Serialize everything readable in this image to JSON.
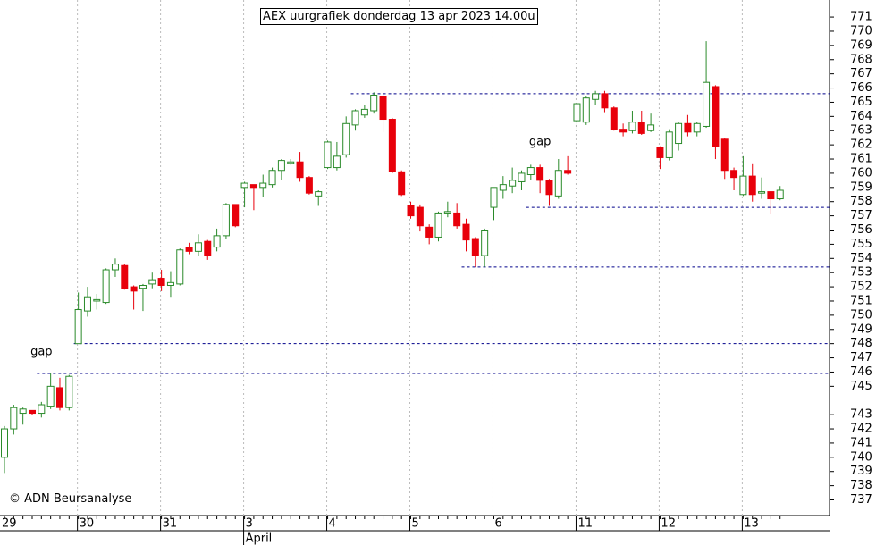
{
  "chart_data": {
    "type": "candlestick",
    "title": "AEX uurgrafiek donderdag 13 apr 2023 14.00u",
    "credit": "© ADN Beursanalyse",
    "categories": [
      "29",
      null,
      null,
      null,
      null,
      null,
      null,
      null,
      "30",
      null,
      null,
      null,
      null,
      null,
      null,
      null,
      null,
      "31",
      null,
      null,
      null,
      null,
      null,
      null,
      null,
      null,
      "3",
      null,
      null,
      null,
      null,
      null,
      null,
      null,
      null,
      "4",
      null,
      null,
      null,
      null,
      null,
      null,
      null,
      null,
      "5",
      null,
      null,
      null,
      null,
      null,
      null,
      null,
      null,
      "6",
      null,
      null,
      null,
      null,
      null,
      null,
      null,
      null,
      "11",
      null,
      null,
      null,
      null,
      null,
      null,
      null,
      null,
      "12",
      null,
      null,
      null,
      null,
      null,
      null,
      null,
      null,
      "13",
      null,
      null,
      null,
      null
    ],
    "month_labels": [
      {
        "label": "April",
        "index": 26
      }
    ],
    "open": [
      740.0,
      742.0,
      743.1,
      743.3,
      743.1,
      743.6,
      744.9,
      743.5,
      748.0,
      750.3,
      751.0,
      750.9,
      753.2,
      753.5,
      752.0,
      751.9,
      752.2,
      752.6,
      752.1,
      752.2,
      754.8,
      754.5,
      755.2,
      754.8,
      755.6,
      757.8,
      759.0,
      759.2,
      759.0,
      759.2,
      760.2,
      760.7,
      760.8,
      759.7,
      758.4,
      760.4,
      760.4,
      761.3,
      763.4,
      764.1,
      764.4,
      765.4,
      763.8,
      760.1,
      757.7,
      757.6,
      756.2,
      755.5,
      757.2,
      757.2,
      756.4,
      755.4,
      754.2,
      757.6,
      758.8,
      759.1,
      759.4,
      759.9,
      760.4,
      759.5,
      758.4,
      760.2,
      763.7,
      763.6,
      765.2,
      765.6,
      764.6,
      763.1,
      763.0,
      763.6,
      763.0,
      761.8,
      761.1,
      762.1,
      763.5,
      762.9,
      763.3,
      766.1,
      762.4,
      760.2,
      758.5,
      759.8,
      758.6,
      758.7,
      758.2
    ],
    "high": [
      742.2,
      743.7,
      743.5,
      743.3,
      743.9,
      745.9,
      745.6,
      745.8,
      751.6,
      752.0,
      751.5,
      753.3,
      754.0,
      753.6,
      752.1,
      752.2,
      753.0,
      753.2,
      753.1,
      754.7,
      755.1,
      755.7,
      755.3,
      756.1,
      757.9,
      757.8,
      759.4,
      759.2,
      759.9,
      760.4,
      761.0,
      761.0,
      761.5,
      759.8,
      758.8,
      762.3,
      762.2,
      764.0,
      764.5,
      764.8,
      765.7,
      765.6,
      763.9,
      760.2,
      758.0,
      757.8,
      756.4,
      757.3,
      758.0,
      757.9,
      756.8,
      755.5,
      756.1,
      759.0,
      759.8,
      760.4,
      760.2,
      760.6,
      760.6,
      759.6,
      761.0,
      761.2,
      765.0,
      765.4,
      765.8,
      765.8,
      764.7,
      763.5,
      764.4,
      764.4,
      764.2,
      761.9,
      763.1,
      763.6,
      764.1,
      763.6,
      769.3,
      766.2,
      762.5,
      760.4,
      761.2,
      760.7,
      759.7,
      758.7,
      759.1
    ],
    "low": [
      738.9,
      741.6,
      742.3,
      743.0,
      742.8,
      743.4,
      743.3,
      743.3,
      748.0,
      749.9,
      750.4,
      750.8,
      752.7,
      751.8,
      750.4,
      750.3,
      751.9,
      751.7,
      751.3,
      752.1,
      754.3,
      754.2,
      753.9,
      754.5,
      755.4,
      756.2,
      757.6,
      757.4,
      758.3,
      759.0,
      759.5,
      760.6,
      759.4,
      758.5,
      757.7,
      760.3,
      760.2,
      761.1,
      763.0,
      763.9,
      764.2,
      762.9,
      760.0,
      758.4,
      756.8,
      755.9,
      755.0,
      755.2,
      756.9,
      756.1,
      754.5,
      753.4,
      753.4,
      756.7,
      758.2,
      758.6,
      758.8,
      759.5,
      758.6,
      757.7,
      758.2,
      759.9,
      763.1,
      763.4,
      764.8,
      764.3,
      763.0,
      762.6,
      762.8,
      762.7,
      762.9,
      760.3,
      760.9,
      761.6,
      762.6,
      762.6,
      763.2,
      761.0,
      759.6,
      758.8,
      758.4,
      758.0,
      758.2,
      757.1,
      758.1
    ],
    "close": [
      742.0,
      743.5,
      743.4,
      743.1,
      743.7,
      745.0,
      743.5,
      745.7,
      750.4,
      751.3,
      751.1,
      753.2,
      753.6,
      751.9,
      751.7,
      752.1,
      752.5,
      752.1,
      752.3,
      754.6,
      754.5,
      755.1,
      754.2,
      755.6,
      757.8,
      756.3,
      759.3,
      759.0,
      759.3,
      760.2,
      760.9,
      760.8,
      759.7,
      758.6,
      758.7,
      762.2,
      761.2,
      763.5,
      764.4,
      764.5,
      765.5,
      763.8,
      760.1,
      758.5,
      757.0,
      756.3,
      755.5,
      757.2,
      757.3,
      756.3,
      755.3,
      754.2,
      756.0,
      759.0,
      759.2,
      759.5,
      760.0,
      760.4,
      759.5,
      758.5,
      760.2,
      760.0,
      764.9,
      765.3,
      765.6,
      764.6,
      763.1,
      762.9,
      763.6,
      762.8,
      763.4,
      761.1,
      762.9,
      763.5,
      762.9,
      763.5,
      766.4,
      761.9,
      760.2,
      759.7,
      759.8,
      758.5,
      758.7,
      758.2,
      758.8
    ],
    "up_color": "#2a8a2a",
    "down_color": "#e8000b",
    "levels": [
      {
        "value": 765.6,
        "from": 38
      },
      {
        "value": 757.6,
        "from": 57
      },
      {
        "value": 753.4,
        "from": 50
      },
      {
        "value": 748.0,
        "from": 8
      },
      {
        "value": 745.9,
        "from": 4
      }
    ],
    "annotations": [
      {
        "text": "gap",
        "index": 4,
        "value": 747.4,
        "color": "#000000"
      },
      {
        "text": "gap",
        "index": 58,
        "value": 762.2,
        "color": "#aaaaaa"
      }
    ],
    "ylim": [
      735.9,
      772.2
    ],
    "yticks": [
      737,
      738,
      739,
      740,
      741,
      742,
      743,
      745,
      746,
      747,
      748,
      749,
      750,
      751,
      752,
      753,
      754,
      755,
      756,
      757,
      758,
      759,
      760,
      761,
      762,
      763,
      764,
      765,
      766,
      767,
      768,
      769,
      770,
      771
    ],
    "grid": true
  }
}
